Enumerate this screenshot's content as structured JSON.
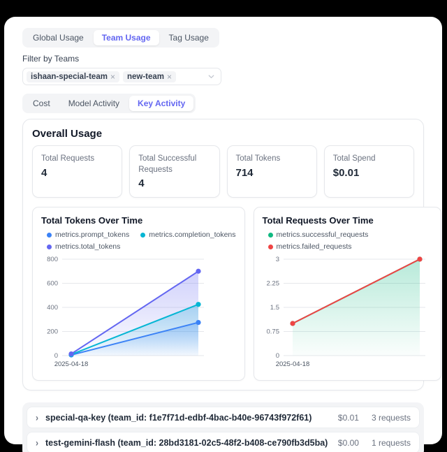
{
  "colors": {
    "accent": "#6366f1",
    "blue": "#3b82f6",
    "cyan": "#06b6d4",
    "indigo": "#6366f1",
    "green": "#10b981",
    "red": "#ef4444",
    "grid": "#e5e7eb",
    "tick_text": "#6b7280"
  },
  "top_tabs": {
    "items": [
      {
        "label": "Global Usage",
        "selected": false
      },
      {
        "label": "Team Usage",
        "selected": true
      },
      {
        "label": "Tag Usage",
        "selected": false
      }
    ]
  },
  "filter": {
    "label": "Filter by Teams",
    "tags": [
      {
        "label": "ishaan-special-team",
        "close": "×"
      },
      {
        "label": "new-team",
        "close": "×"
      }
    ]
  },
  "view_tabs": {
    "items": [
      {
        "label": "Cost",
        "selected": false
      },
      {
        "label": "Model Activity",
        "selected": false
      },
      {
        "label": "Key Activity",
        "selected": true
      }
    ]
  },
  "overall": {
    "title": "Overall Usage",
    "stats": [
      {
        "label": "Total Requests",
        "value": "4"
      },
      {
        "label": "Total Successful Requests",
        "value": "4"
      },
      {
        "label": "Total Tokens",
        "value": "714"
      },
      {
        "label": "Total Spend",
        "value": "$0.01"
      }
    ]
  },
  "chart_data": [
    {
      "type": "line",
      "title": "Total Tokens Over Time",
      "categories": [
        "2025-04-18",
        ""
      ],
      "x_tick_labels": [
        "2025-04-18"
      ],
      "series": [
        {
          "name": "metrics.prompt_tokens",
          "color": "#3b82f6",
          "values": [
            5,
            275
          ],
          "area": true
        },
        {
          "name": "metrics.completion_tokens",
          "color": "#06b6d4",
          "values": [
            9,
            425
          ],
          "area": true
        },
        {
          "name": "metrics.total_tokens",
          "color": "#6366f1",
          "values": [
            14,
            700
          ],
          "area": true
        }
      ],
      "ylim": [
        0,
        800
      ],
      "yticks": [
        0,
        200,
        400,
        600,
        800
      ],
      "grid": true,
      "legend_position": "top"
    },
    {
      "type": "line",
      "title": "Total Requests Over Time",
      "categories": [
        "2025-04-18",
        ""
      ],
      "x_tick_labels": [
        "2025-04-18"
      ],
      "series": [
        {
          "name": "metrics.successful_requests",
          "color": "#10b981",
          "values": [
            1,
            3
          ],
          "area": true
        },
        {
          "name": "metrics.failed_requests",
          "color": "#ef4444",
          "values": [
            1,
            3
          ],
          "area": false
        }
      ],
      "ylim": [
        0,
        3
      ],
      "yticks": [
        0,
        0.75,
        1.5,
        2.25,
        3
      ],
      "grid": true,
      "legend_position": "top"
    }
  ],
  "key_rows": [
    {
      "name": "special-qa-key (team_id: f1e7f71d-edbf-4bac-b40e-96743f972f61)",
      "spend": "$0.01",
      "requests": "3 requests",
      "chevron": "›"
    },
    {
      "name": "test-gemini-flash (team_id: 28bd3181-02c5-48f2-b408-ce790fb3d5ba)",
      "spend": "$0.00",
      "requests": "1 requests",
      "chevron": "›"
    }
  ]
}
